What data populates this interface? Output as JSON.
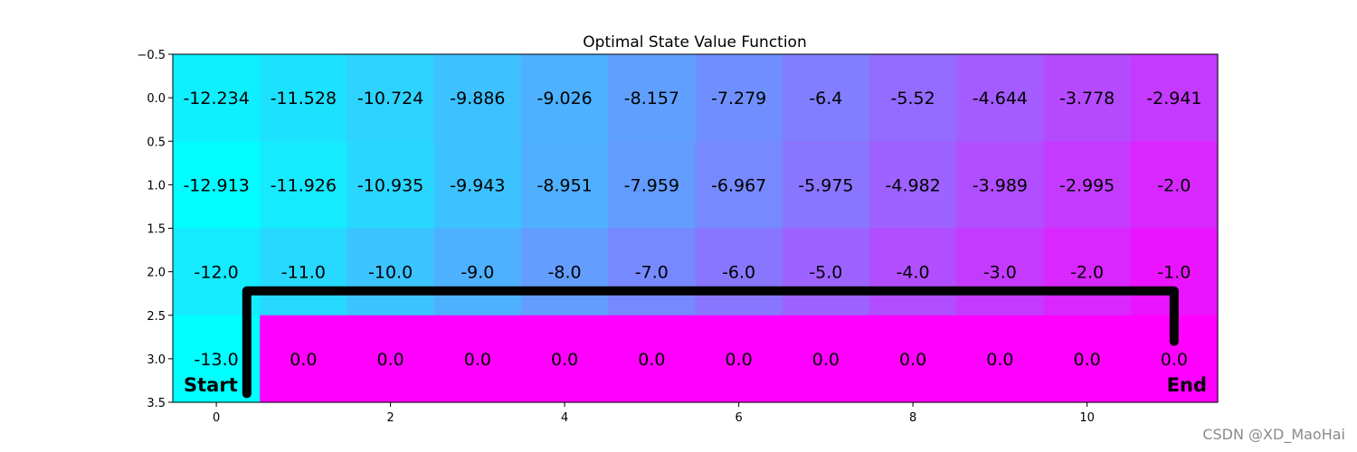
{
  "chart_data": {
    "type": "heatmap",
    "title": "Optimal State Value Function",
    "xlabel": "",
    "ylabel": "",
    "colormap": "cool",
    "xlim": [
      -0.5,
      11.5
    ],
    "ylim": [
      3.5,
      -0.5
    ],
    "x_ticks": [
      0,
      2,
      4,
      6,
      8,
      10
    ],
    "y_ticks": [
      -0.5,
      0.0,
      0.5,
      1.0,
      1.5,
      2.0,
      2.5,
      3.0,
      3.5
    ],
    "x_tick_labels": [
      "0",
      "2",
      "4",
      "6",
      "8",
      "10"
    ],
    "y_tick_labels": [
      "−0.5",
      "0.0",
      "0.5",
      "1.0",
      "1.5",
      "2.0",
      "2.5",
      "3.0",
      "3.5"
    ],
    "rows": 4,
    "cols": 12,
    "values": [
      [
        -12.234,
        -11.528,
        -10.724,
        -9.886,
        -9.026,
        -8.157,
        -7.279,
        -6.4,
        -5.52,
        -4.644,
        -3.778,
        -2.941
      ],
      [
        -12.913,
        -11.926,
        -10.935,
        -9.943,
        -8.951,
        -7.959,
        -6.967,
        -5.975,
        -4.982,
        -3.989,
        -2.995,
        -2.0
      ],
      [
        -12.0,
        -11.0,
        -10.0,
        -9.0,
        -8.0,
        -7.0,
        -6.0,
        -5.0,
        -4.0,
        -3.0,
        -2.0,
        -1.0
      ],
      [
        -13.0,
        0.0,
        0.0,
        0.0,
        0.0,
        0.0,
        0.0,
        0.0,
        0.0,
        0.0,
        0.0,
        0.0
      ]
    ],
    "cell_labels": [
      [
        "-12.234",
        "-11.528",
        "-10.724",
        "-9.886",
        "-9.026",
        "-8.157",
        "-7.279",
        "-6.4",
        "-5.52",
        "-4.644",
        "-3.778",
        "-2.941"
      ],
      [
        "-12.913",
        "-11.926",
        "-10.935",
        "-9.943",
        "-8.951",
        "-7.959",
        "-6.967",
        "-5.975",
        "-4.982",
        "-3.989",
        "-2.995",
        "-2.0"
      ],
      [
        "-12.0",
        "-11.0",
        "-10.0",
        "-9.0",
        "-8.0",
        "-7.0",
        "-6.0",
        "-5.0",
        "-4.0",
        "-3.0",
        "-2.0",
        "-1.0"
      ],
      [
        "-13.0",
        "0.0",
        "0.0",
        "0.0",
        "0.0",
        "0.0",
        "0.0",
        "0.0",
        "0.0",
        "0.0",
        "0.0",
        "0.0"
      ]
    ],
    "cliff_color": "#ff00ff",
    "start_label": "Start",
    "end_label": "End",
    "path": [
      [
        0.35,
        3.4
      ],
      [
        0.35,
        2.22
      ],
      [
        11.0,
        2.22
      ],
      [
        11.0,
        2.8
      ]
    ],
    "path_color": "#000000"
  },
  "watermark": "CSDN @XD_MaoHai"
}
